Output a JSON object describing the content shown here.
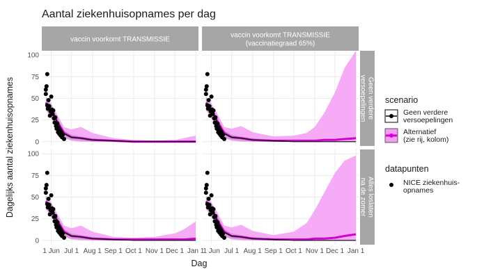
{
  "chart_data": {
    "type": "line",
    "title": "Aantal ziekenhuisopnames per dag",
    "xlabel": "Dag",
    "ylabel": "Dagelijks aantal ziekenhuisopnames",
    "x_domain": [
      "2021-05-18",
      "2022-01-05"
    ],
    "y_range": [
      -5,
      105
    ],
    "x_ticks": [
      {
        "date": "2021-06-01",
        "label": "1 Jun"
      },
      {
        "date": "2021-07-01",
        "label": "Jul 1"
      },
      {
        "date": "2021-08-01",
        "label": "Aug 1"
      },
      {
        "date": "2021-09-01",
        "label": "Sep 1"
      },
      {
        "date": "2021-10-01",
        "label": "Oct 1"
      },
      {
        "date": "2021-11-01",
        "label": "Nov 1"
      },
      {
        "date": "2021-12-01",
        "label": "Dec 1"
      },
      {
        "date": "2022-01-01",
        "label": "Jan 1"
      }
    ],
    "y_ticks": [
      0,
      25,
      50,
      75,
      100
    ],
    "grid": true,
    "col_strips": [
      [
        "vaccin voorkomt TRANSMISSIE"
      ],
      [
        "vaccin voorkomt TRANSMISSIE",
        "(vaccinatiegraad 65%)"
      ]
    ],
    "row_strips": [
      [
        "Geen verdere",
        "versoepelingen"
      ],
      [
        "Alles loslaten",
        "na de zomer"
      ]
    ],
    "legend": {
      "position": "right",
      "scenario_title": "scenario",
      "scenario_items": [
        {
          "lines": [
            "Geen verdere",
            "versoepelingen"
          ],
          "color": "#000000"
        },
        {
          "lines": [
            "Alternatief",
            "(zie rij, kolom)"
          ],
          "color": "#d400d4",
          "fill": "#f59cf5"
        }
      ],
      "points_title": "datapunten",
      "points_items": [
        {
          "lines": [
            "NICE ziekenhuis-",
            "opnames"
          ],
          "color": "#000000"
        }
      ]
    },
    "colors": {
      "baseline": "#000000",
      "alternative_line": "#d400d4",
      "alternative_band": "#f59cf5",
      "baseline_band": "#9e9e9e",
      "strip_bg": "#a6a6a6",
      "panel_bg": "#ffffff",
      "grid": "#ebebeb",
      "points": "#000000"
    },
    "observed_points": [
      {
        "x": "2021-05-24",
        "y": 60
      },
      {
        "x": "2021-05-24",
        "y": 55
      },
      {
        "x": "2021-05-25",
        "y": 64
      },
      {
        "x": "2021-05-26",
        "y": 78
      },
      {
        "x": "2021-05-26",
        "y": 42
      },
      {
        "x": "2021-05-27",
        "y": 38
      },
      {
        "x": "2021-05-28",
        "y": 48
      },
      {
        "x": "2021-05-29",
        "y": 41
      },
      {
        "x": "2021-05-30",
        "y": 30
      },
      {
        "x": "2021-05-31",
        "y": 35
      },
      {
        "x": "2021-06-01",
        "y": 52
      },
      {
        "x": "2021-06-02",
        "y": 37
      },
      {
        "x": "2021-06-03",
        "y": 32
      },
      {
        "x": "2021-06-04",
        "y": 36
      },
      {
        "x": "2021-06-05",
        "y": 27
      },
      {
        "x": "2021-06-06",
        "y": 22
      },
      {
        "x": "2021-06-07",
        "y": 28
      },
      {
        "x": "2021-06-08",
        "y": 18
      },
      {
        "x": "2021-06-09",
        "y": 15
      },
      {
        "x": "2021-06-10",
        "y": 21
      },
      {
        "x": "2021-06-11",
        "y": 11
      },
      {
        "x": "2021-06-12",
        "y": 16
      },
      {
        "x": "2021-06-13",
        "y": 9
      },
      {
        "x": "2021-06-14",
        "y": 13
      },
      {
        "x": "2021-06-15",
        "y": 7
      },
      {
        "x": "2021-06-16",
        "y": 10
      },
      {
        "x": "2021-06-17",
        "y": 5
      },
      {
        "x": "2021-06-18",
        "y": 8
      },
      {
        "x": "2021-06-20",
        "y": 3
      }
    ],
    "panels": [
      {
        "row": 0,
        "col": 0,
        "baseline": {
          "x": [
            "2021-05-24",
            "2021-06-01",
            "2021-06-10",
            "2021-06-20",
            "2021-07-01",
            "2021-07-15",
            "2021-08-01",
            "2021-09-01",
            "2021-10-01",
            "2021-11-01",
            "2021-12-01",
            "2022-01-01"
          ],
          "y": [
            44,
            36,
            22,
            9,
            5,
            4,
            2,
            1,
            0,
            0,
            0,
            0
          ],
          "lower": [
            38,
            29,
            16,
            5,
            2,
            1,
            0,
            0,
            0,
            0,
            0,
            0
          ],
          "upper": [
            50,
            42,
            28,
            13,
            8,
            6,
            4,
            2,
            1,
            0,
            0,
            0
          ]
        },
        "alternative": {
          "x": [
            "2021-05-24",
            "2021-06-01",
            "2021-06-10",
            "2021-06-20",
            "2021-07-01",
            "2021-07-15",
            "2021-08-01",
            "2021-09-01",
            "2021-10-01",
            "2021-11-01",
            "2021-12-01",
            "2022-01-01"
          ],
          "y": [
            45,
            37,
            23,
            10,
            5,
            4,
            2,
            1,
            0,
            0,
            0,
            0
          ],
          "lower": [
            36,
            27,
            14,
            4,
            1,
            0,
            0,
            0,
            0,
            0,
            0,
            0
          ],
          "upper": [
            52,
            44,
            31,
            17,
            14,
            17,
            10,
            4,
            2,
            1,
            2,
            7
          ]
        }
      },
      {
        "row": 0,
        "col": 1,
        "baseline": {
          "x": [
            "2021-05-24",
            "2021-06-01",
            "2021-06-10",
            "2021-06-20",
            "2021-07-01",
            "2021-07-15",
            "2021-08-01",
            "2021-09-01",
            "2021-10-01",
            "2021-11-01",
            "2021-12-01",
            "2022-01-01"
          ],
          "y": [
            44,
            36,
            22,
            9,
            5,
            4,
            2,
            1,
            0,
            0,
            0,
            0
          ],
          "lower": [
            38,
            29,
            16,
            5,
            2,
            1,
            0,
            0,
            0,
            0,
            0,
            0
          ],
          "upper": [
            50,
            42,
            28,
            13,
            8,
            6,
            4,
            2,
            1,
            0,
            0,
            0
          ]
        },
        "alternative": {
          "x": [
            "2021-05-24",
            "2021-06-01",
            "2021-06-10",
            "2021-06-20",
            "2021-07-01",
            "2021-07-15",
            "2021-08-01",
            "2021-09-01",
            "2021-10-01",
            "2021-10-20",
            "2021-11-01",
            "2021-11-15",
            "2021-12-01",
            "2021-12-15",
            "2022-01-01"
          ],
          "y": [
            45,
            37,
            23,
            10,
            5,
            4,
            2,
            1,
            1,
            1,
            1,
            2,
            2,
            3,
            4
          ],
          "lower": [
            36,
            27,
            14,
            4,
            1,
            0,
            0,
            0,
            0,
            0,
            0,
            0,
            0,
            0,
            0
          ],
          "upper": [
            52,
            44,
            32,
            17,
            15,
            18,
            11,
            6,
            7,
            10,
            17,
            33,
            57,
            85,
            105
          ]
        }
      },
      {
        "row": 1,
        "col": 0,
        "baseline": {
          "x": [
            "2021-05-24",
            "2021-06-01",
            "2021-06-10",
            "2021-06-20",
            "2021-07-01",
            "2021-07-15",
            "2021-08-01",
            "2021-09-01",
            "2021-10-01",
            "2021-11-01",
            "2021-12-01",
            "2022-01-01"
          ],
          "y": [
            44,
            36,
            22,
            9,
            5,
            4,
            2,
            1,
            0,
            0,
            0,
            0
          ],
          "lower": [
            38,
            29,
            16,
            5,
            2,
            1,
            0,
            0,
            0,
            0,
            0,
            0
          ],
          "upper": [
            50,
            42,
            28,
            13,
            8,
            6,
            4,
            2,
            1,
            0,
            0,
            0
          ]
        },
        "alternative": {
          "x": [
            "2021-05-24",
            "2021-06-01",
            "2021-06-10",
            "2021-06-20",
            "2021-07-01",
            "2021-07-15",
            "2021-08-01",
            "2021-09-01",
            "2021-10-01",
            "2021-11-01",
            "2021-12-01",
            "2021-12-15",
            "2022-01-01"
          ],
          "y": [
            45,
            37,
            23,
            10,
            5,
            4,
            2,
            1,
            1,
            1,
            1,
            1,
            2
          ],
          "lower": [
            36,
            27,
            14,
            4,
            1,
            0,
            0,
            0,
            0,
            0,
            0,
            0,
            0
          ],
          "upper": [
            52,
            44,
            31,
            17,
            14,
            17,
            10,
            4,
            3,
            4,
            8,
            13,
            22
          ]
        }
      },
      {
        "row": 1,
        "col": 1,
        "baseline": {
          "x": [
            "2021-05-24",
            "2021-06-01",
            "2021-06-10",
            "2021-06-20",
            "2021-07-01",
            "2021-07-15",
            "2021-08-01",
            "2021-09-01",
            "2021-10-01",
            "2021-11-01",
            "2021-12-01",
            "2022-01-01"
          ],
          "y": [
            44,
            36,
            22,
            9,
            5,
            4,
            2,
            1,
            0,
            0,
            0,
            0
          ],
          "lower": [
            38,
            29,
            16,
            5,
            2,
            1,
            0,
            0,
            0,
            0,
            0,
            0
          ],
          "upper": [
            50,
            42,
            28,
            13,
            8,
            6,
            4,
            2,
            1,
            0,
            0,
            0
          ]
        },
        "alternative": {
          "x": [
            "2021-05-24",
            "2021-06-01",
            "2021-06-10",
            "2021-06-20",
            "2021-07-01",
            "2021-07-15",
            "2021-08-01",
            "2021-09-01",
            "2021-10-01",
            "2021-10-20",
            "2021-11-01",
            "2021-11-15",
            "2021-12-01",
            "2021-12-15",
            "2022-01-01"
          ],
          "y": [
            45,
            37,
            23,
            10,
            5,
            4,
            2,
            1,
            1,
            1,
            2,
            2,
            3,
            5,
            7
          ],
          "lower": [
            36,
            27,
            14,
            4,
            1,
            0,
            0,
            0,
            0,
            0,
            0,
            0,
            0,
            0,
            0
          ],
          "upper": [
            52,
            44,
            32,
            17,
            15,
            18,
            11,
            6,
            10,
            20,
            35,
            55,
            78,
            92,
            98
          ]
        }
      }
    ]
  }
}
